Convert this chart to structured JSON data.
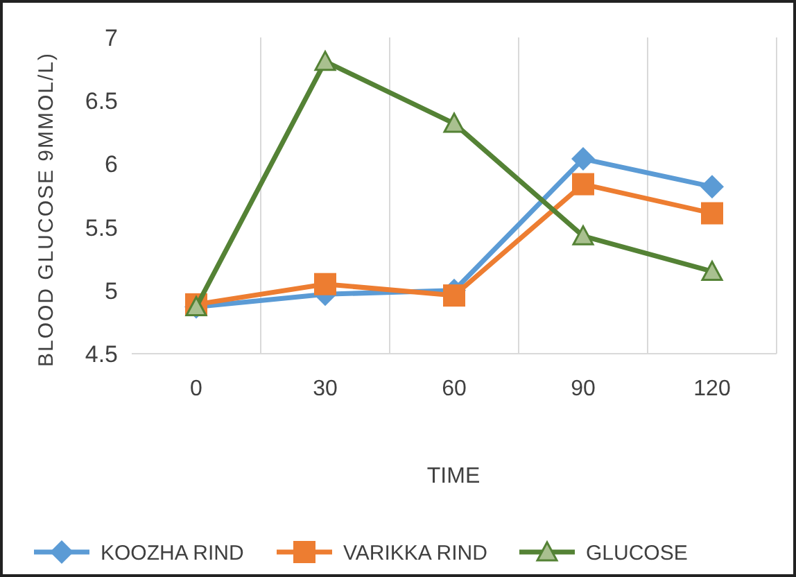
{
  "chart_data": {
    "type": "line",
    "xlabel": "TIME",
    "ylabel": "BLOOD GLUCOSE 9MMOL/L)",
    "categories": [
      "0",
      "30",
      "60",
      "90",
      "120"
    ],
    "series": [
      {
        "name": "KOOZHA RIND",
        "color": "#5b9bd5",
        "marker": "diamond",
        "values": [
          4.87,
          4.97,
          5.0,
          6.04,
          5.82
        ]
      },
      {
        "name": "VARIKKA RIND",
        "color": "#ed7d31",
        "marker": "square",
        "values": [
          4.89,
          5.05,
          4.96,
          5.84,
          5.61
        ]
      },
      {
        "name": "GLUCOSE",
        "color": "#548235",
        "marker": "triangle",
        "values": [
          4.87,
          6.81,
          6.32,
          5.43,
          5.15
        ]
      }
    ],
    "ylim": [
      4.5,
      7
    ],
    "yticks": [
      4.5,
      5,
      5.5,
      6,
      6.5,
      7
    ],
    "grid": "x",
    "legend": "bottom"
  }
}
